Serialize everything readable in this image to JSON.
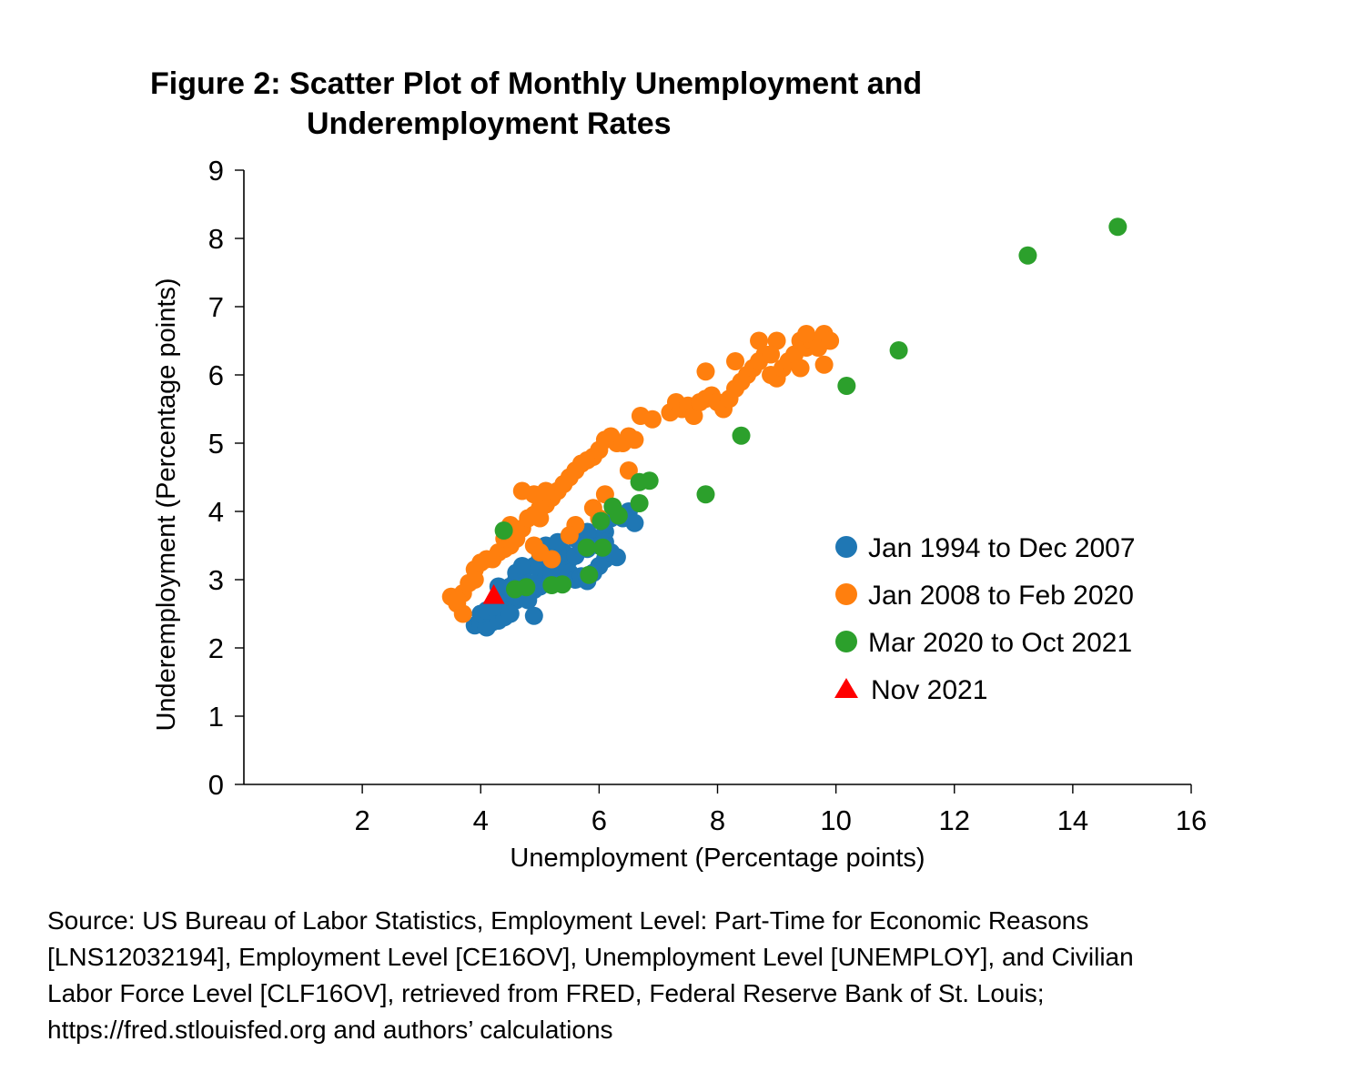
{
  "title": {
    "line1": "Figure 2: Scatter Plot of Monthly Unemployment and",
    "line2": "Underemployment Rates"
  },
  "source_lines": [
    "Source: US Bureau of Labor Statistics, Employment Level: Part-Time for Economic Reasons",
    "[LNS12032194], Employment Level [CE16OV], Unemployment Level [UNEMPLOY], and Civilian",
    "Labor Force Level [CLF16OV], retrieved from FRED, Federal Reserve Bank of St. Louis;",
    "https://fred.stlouisfed.org and authors’ calculations"
  ],
  "chart_data": {
    "type": "scatter",
    "title": "Figure 2: Scatter Plot of Monthly Unemployment and Underemployment Rates",
    "xlabel": "Unemployment (Percentage points)",
    "ylabel": "Underemployment (Percentage points)",
    "xlim": [
      0,
      16
    ],
    "ylim": [
      0,
      9
    ],
    "xticks": [
      2,
      4,
      6,
      8,
      10,
      12,
      14,
      16
    ],
    "yticks": [
      0,
      1,
      2,
      3,
      4,
      5,
      6,
      7,
      8,
      9
    ],
    "grid": false,
    "legend_position": "center-right",
    "series": [
      {
        "name": "Jan 1994 to Dec 2007",
        "color": "#1f77b4",
        "marker": "circle",
        "points": [
          [
            3.9,
            2.33
          ],
          [
            4.0,
            2.35
          ],
          [
            4.1,
            2.3
          ],
          [
            4.2,
            2.38
          ],
          [
            4.3,
            2.4
          ],
          [
            4.4,
            2.45
          ],
          [
            4.0,
            2.5
          ],
          [
            4.1,
            2.55
          ],
          [
            4.3,
            2.6
          ],
          [
            4.5,
            2.65
          ],
          [
            4.6,
            2.7
          ],
          [
            4.4,
            2.8
          ],
          [
            4.5,
            2.9
          ],
          [
            4.6,
            3.0
          ],
          [
            4.7,
            3.05
          ],
          [
            4.8,
            2.95
          ],
          [
            4.9,
            2.85
          ],
          [
            5.0,
            2.9
          ],
          [
            5.0,
            3.0
          ],
          [
            5.1,
            3.1
          ],
          [
            5.2,
            3.05
          ],
          [
            5.3,
            3.15
          ],
          [
            5.4,
            3.2
          ],
          [
            5.5,
            3.3
          ],
          [
            5.4,
            3.4
          ],
          [
            5.6,
            3.35
          ],
          [
            5.7,
            3.5
          ],
          [
            5.8,
            3.45
          ],
          [
            5.9,
            3.55
          ],
          [
            6.0,
            3.6
          ],
          [
            5.5,
            3.1
          ],
          [
            5.6,
            3.0
          ],
          [
            5.7,
            3.05
          ],
          [
            5.8,
            2.98
          ],
          [
            5.9,
            3.1
          ],
          [
            6.0,
            3.2
          ],
          [
            6.1,
            3.3
          ],
          [
            6.2,
            3.4
          ],
          [
            6.3,
            3.33
          ],
          [
            6.0,
            3.5
          ],
          [
            6.1,
            3.7
          ],
          [
            6.2,
            3.9
          ],
          [
            6.4,
            3.9
          ],
          [
            6.5,
            4.0
          ],
          [
            6.6,
            3.83
          ],
          [
            5.2,
            3.3
          ],
          [
            5.3,
            3.4
          ],
          [
            5.0,
            3.3
          ],
          [
            4.9,
            3.2
          ],
          [
            4.7,
            2.75
          ],
          [
            4.8,
            2.7
          ],
          [
            4.9,
            2.47
          ],
          [
            4.2,
            2.6
          ],
          [
            4.3,
            2.9
          ],
          [
            4.6,
            3.1
          ],
          [
            5.6,
            3.6
          ],
          [
            5.8,
            3.7
          ],
          [
            6.1,
            3.55
          ],
          [
            4.5,
            2.5
          ],
          [
            4.7,
            3.2
          ],
          [
            5.1,
            3.5
          ],
          [
            5.3,
            3.55
          ]
        ]
      },
      {
        "name": "Jan 2008 to Feb 2020",
        "color": "#ff7f0e",
        "marker": "circle",
        "points": [
          [
            3.5,
            2.75
          ],
          [
            3.6,
            2.65
          ],
          [
            3.7,
            2.5
          ],
          [
            3.7,
            2.8
          ],
          [
            3.8,
            2.95
          ],
          [
            3.9,
            3.0
          ],
          [
            3.9,
            3.15
          ],
          [
            4.0,
            3.25
          ],
          [
            4.1,
            3.3
          ],
          [
            4.2,
            3.3
          ],
          [
            4.3,
            3.4
          ],
          [
            4.4,
            3.45
          ],
          [
            4.5,
            3.5
          ],
          [
            4.6,
            3.6
          ],
          [
            4.7,
            3.75
          ],
          [
            4.8,
            3.9
          ],
          [
            4.9,
            3.95
          ],
          [
            5.0,
            4.05
          ],
          [
            5.1,
            4.1
          ],
          [
            5.2,
            4.2
          ],
          [
            5.3,
            4.3
          ],
          [
            5.4,
            4.4
          ],
          [
            5.5,
            4.5
          ],
          [
            5.6,
            4.6
          ],
          [
            5.7,
            4.7
          ],
          [
            5.8,
            4.75
          ],
          [
            5.9,
            4.8
          ],
          [
            6.0,
            4.9
          ],
          [
            6.1,
            5.05
          ],
          [
            6.2,
            5.1
          ],
          [
            6.3,
            5.0
          ],
          [
            6.4,
            5.0
          ],
          [
            6.5,
            5.1
          ],
          [
            6.6,
            5.05
          ],
          [
            6.7,
            5.4
          ],
          [
            6.9,
            5.35
          ],
          [
            7.2,
            5.45
          ],
          [
            7.3,
            5.6
          ],
          [
            7.4,
            5.5
          ],
          [
            7.5,
            5.55
          ],
          [
            7.6,
            5.4
          ],
          [
            7.7,
            5.6
          ],
          [
            7.8,
            5.65
          ],
          [
            7.9,
            5.7
          ],
          [
            8.0,
            5.6
          ],
          [
            8.1,
            5.5
          ],
          [
            8.2,
            5.65
          ],
          [
            8.3,
            5.8
          ],
          [
            8.4,
            5.9
          ],
          [
            8.5,
            6.0
          ],
          [
            8.6,
            6.1
          ],
          [
            8.7,
            6.2
          ],
          [
            8.8,
            6.3
          ],
          [
            8.9,
            6.0
          ],
          [
            9.0,
            5.95
          ],
          [
            9.1,
            6.1
          ],
          [
            9.2,
            6.2
          ],
          [
            9.3,
            6.3
          ],
          [
            9.4,
            6.5
          ],
          [
            9.5,
            6.4
          ],
          [
            9.6,
            6.5
          ],
          [
            9.7,
            6.4
          ],
          [
            9.8,
            6.6
          ],
          [
            9.9,
            6.5
          ],
          [
            9.5,
            6.6
          ],
          [
            9.4,
            6.1
          ],
          [
            9.8,
            6.15
          ],
          [
            9.0,
            6.5
          ],
          [
            8.7,
            6.5
          ],
          [
            8.3,
            6.2
          ],
          [
            7.8,
            6.05
          ],
          [
            8.9,
            6.3
          ],
          [
            4.7,
            4.3
          ],
          [
            4.9,
            4.25
          ],
          [
            5.1,
            4.3
          ],
          [
            5.0,
            3.9
          ],
          [
            4.5,
            3.8
          ],
          [
            4.4,
            3.6
          ],
          [
            5.2,
            3.3
          ],
          [
            5.0,
            3.4
          ],
          [
            4.9,
            3.5
          ],
          [
            5.6,
            3.8
          ],
          [
            5.5,
            3.65
          ],
          [
            5.9,
            4.05
          ],
          [
            6.0,
            3.9
          ],
          [
            6.1,
            4.25
          ],
          [
            6.5,
            4.6
          ],
          [
            3.6,
            2.7
          ]
        ]
      },
      {
        "name": "Mar 2020 to Oct 2021",
        "color": "#2ca02c",
        "marker": "circle",
        "points": [
          [
            14.76,
            8.17
          ],
          [
            13.24,
            7.75
          ],
          [
            11.06,
            6.36
          ],
          [
            10.18,
            5.84
          ],
          [
            8.4,
            5.11
          ],
          [
            7.8,
            4.25
          ],
          [
            6.85,
            4.45
          ],
          [
            6.68,
            4.43
          ],
          [
            6.68,
            4.12
          ],
          [
            6.23,
            4.07
          ],
          [
            6.33,
            3.94
          ],
          [
            6.03,
            3.86
          ],
          [
            5.79,
            3.47
          ],
          [
            6.06,
            3.47
          ],
          [
            5.83,
            3.07
          ],
          [
            5.38,
            2.93
          ],
          [
            5.2,
            2.92
          ],
          [
            4.77,
            2.89
          ],
          [
            4.58,
            2.86
          ],
          [
            4.39,
            3.72
          ]
        ]
      },
      {
        "name": "Nov 2021",
        "color": "#ff0000",
        "marker": "triangle",
        "points": [
          [
            4.22,
            2.76
          ]
        ]
      }
    ]
  }
}
